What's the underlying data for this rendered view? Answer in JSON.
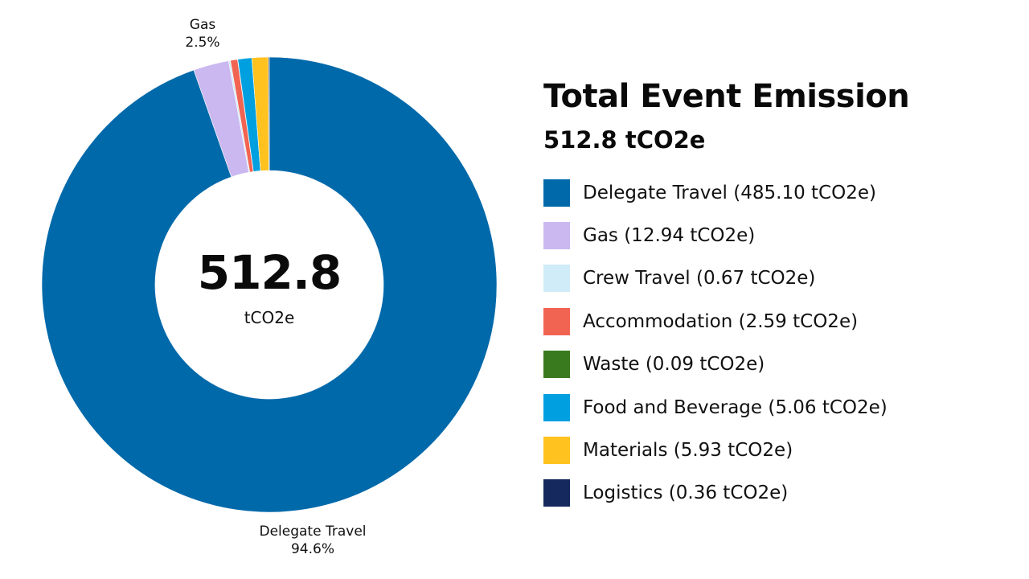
{
  "chart_data": {
    "type": "pie",
    "variant": "donut",
    "title": "Total Event Emission",
    "subtitle": "512.8 tCO2e",
    "center_label": {
      "value": "512.8",
      "unit": "tCO2e"
    },
    "unit": "tCO2e",
    "categories": [
      "Delegate Travel",
      "Gas",
      "Crew Travel",
      "Accommodation",
      "Waste",
      "Food and Beverage",
      "Materials",
      "Logistics"
    ],
    "values": [
      485.1,
      12.94,
      0.67,
      2.59,
      0.09,
      5.06,
      5.93,
      0.36
    ],
    "colors": [
      "#0069aa",
      "#cbb8f0",
      "#d0ecf8",
      "#f26452",
      "#3a7a1e",
      "#00a0e0",
      "#ffc21f",
      "#15295e"
    ],
    "slice_labels": [
      {
        "category": "Gas",
        "percent": "2.5%"
      },
      {
        "category": "Delegate Travel",
        "percent": "94.6%"
      }
    ],
    "start_angle": "12 o'clock, clockwise",
    "legend_position": "right"
  },
  "header": {
    "title": "Total Event Emission",
    "total": "512.8 tCO2e"
  },
  "center": {
    "value": "512.8",
    "unit": "tCO2e"
  },
  "labels": {
    "gas_name": "Gas",
    "gas_pct": "2.5%",
    "delegate_name": "Delegate Travel",
    "delegate_pct": "94.6%"
  },
  "legend": [
    {
      "label": "Delegate Travel (485.10 tCO2e)",
      "color": "#0069aa"
    },
    {
      "label": "Gas (12.94 tCO2e)",
      "color": "#cbb8f0"
    },
    {
      "label": "Crew Travel (0.67 tCO2e)",
      "color": "#d0ecf8"
    },
    {
      "label": "Accommodation (2.59 tCO2e)",
      "color": "#f26452"
    },
    {
      "label": "Waste (0.09 tCO2e)",
      "color": "#3a7a1e"
    },
    {
      "label": "Food and Beverage (5.06 tCO2e)",
      "color": "#00a0e0"
    },
    {
      "label": "Materials (5.93 tCO2e)",
      "color": "#ffc21f"
    },
    {
      "label": "Logistics (0.36 tCO2e)",
      "color": "#15295e"
    }
  ]
}
